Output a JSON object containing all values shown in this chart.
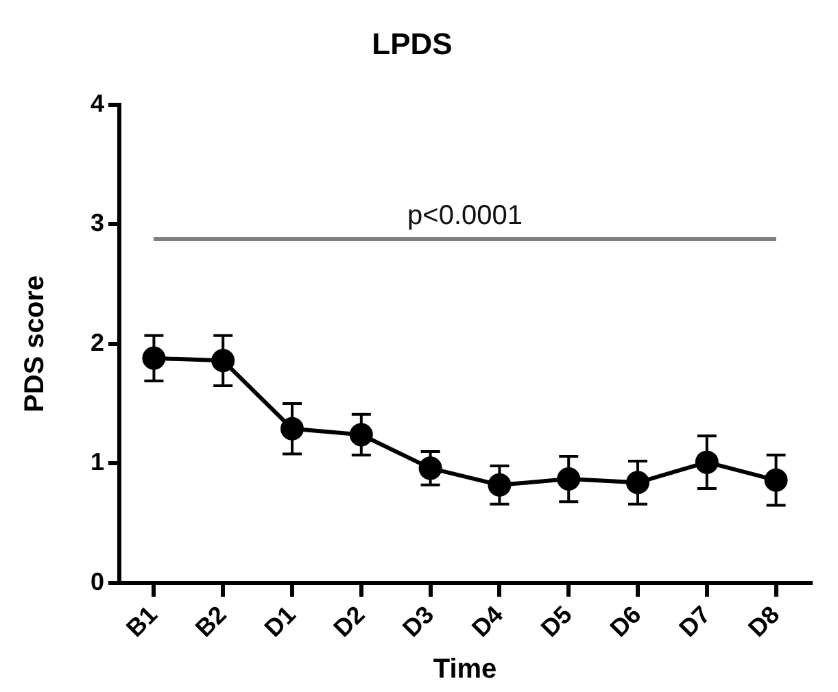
{
  "chart_data": {
    "type": "line",
    "title": "LPDS",
    "xlabel": "Time",
    "ylabel": "PDS score",
    "categories": [
      "B1",
      "B2",
      "D1",
      "D2",
      "D3",
      "D4",
      "D5",
      "D6",
      "D7",
      "D8"
    ],
    "series": [
      {
        "color": "#000000",
        "values": [
          1.88,
          1.86,
          1.29,
          1.24,
          0.96,
          0.82,
          0.87,
          0.84,
          1.01,
          0.86
        ],
        "errors": [
          0.19,
          0.21,
          0.21,
          0.17,
          0.14,
          0.16,
          0.19,
          0.18,
          0.22,
          0.21
        ]
      }
    ],
    "ylim": [
      0,
      4
    ],
    "yticks": [
      0,
      1,
      2,
      3,
      4
    ],
    "marker": "circle",
    "line_style": "solid",
    "legend": false,
    "grid": false,
    "annotations": [
      "p<0.0001"
    ]
  }
}
